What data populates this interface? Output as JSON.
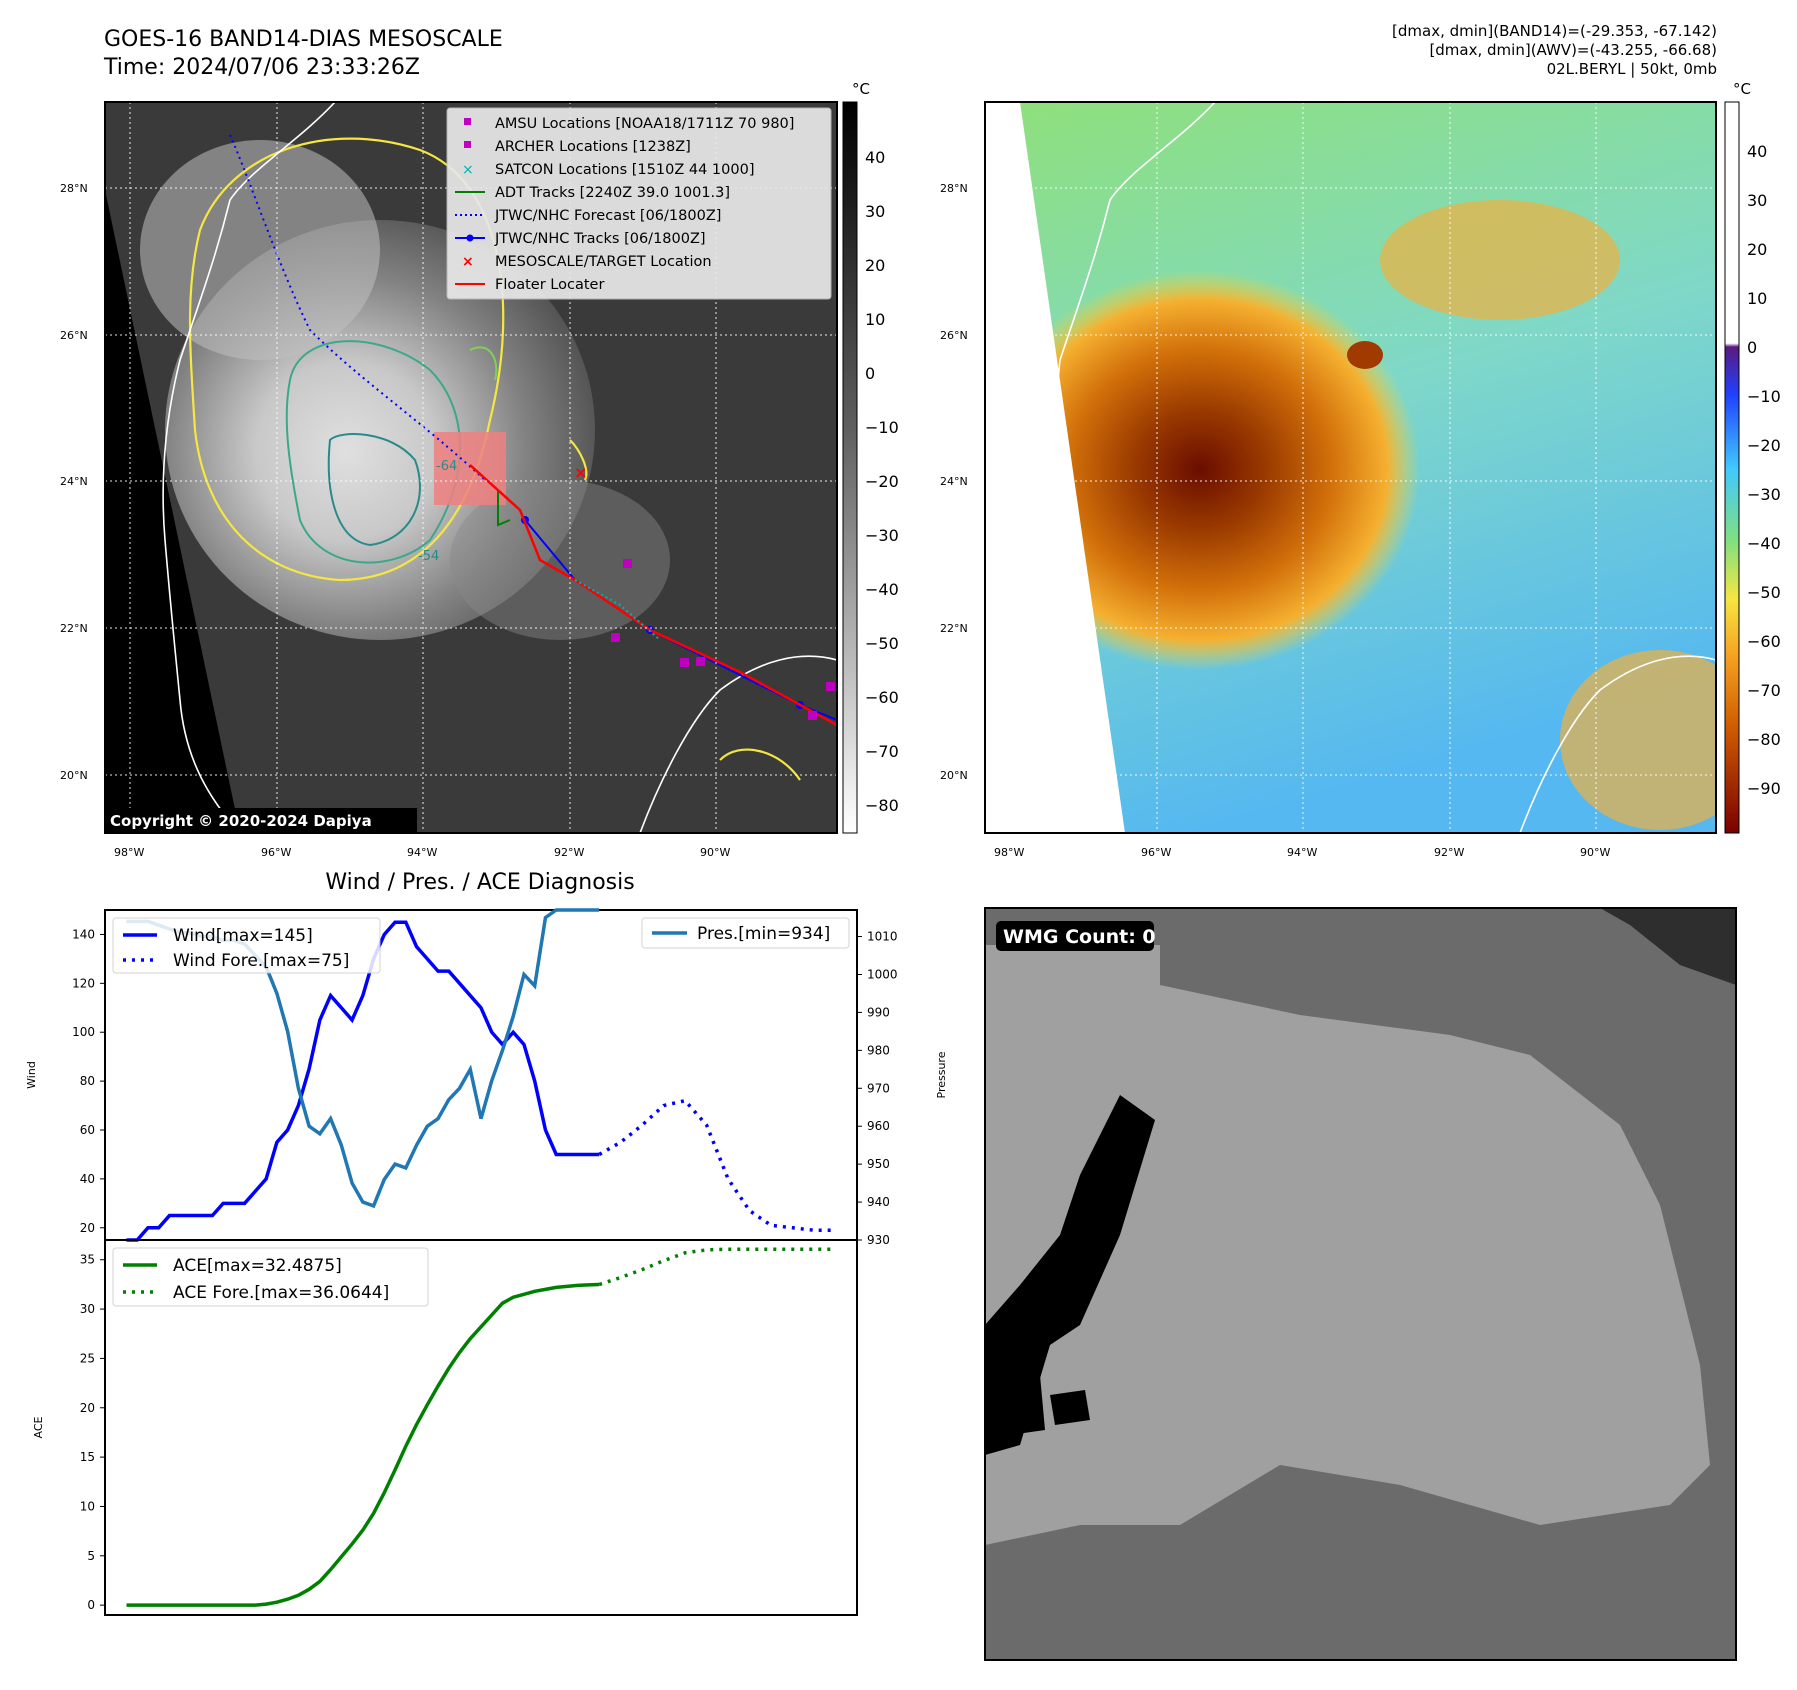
{
  "header": {
    "title_line1": "GOES-16 BAND14-DIAS MESOSCALE",
    "title_line2": "Time: 2024/07/06 23:33:26Z",
    "info_line1": "[dmax, dmin](BAND14)=(-29.353, -67.142)",
    "info_line2": "[dmax, dmin](AWV)=(-43.255, -66.68)",
    "info_line3": "02L.BERYL | 50kt, 0mb"
  },
  "ir_panel": {
    "unit": "°C",
    "copyright": "Copyright © 2020-2024 Dapiya",
    "lat_ticks": [
      "28°N",
      "26°N",
      "24°N",
      "22°N",
      "20°N"
    ],
    "lon_ticks": [
      "98°W",
      "96°W",
      "94°W",
      "92°W",
      "90°W"
    ],
    "colorbar_ticks": [
      "40",
      "30",
      "20",
      "10",
      "0",
      "−10",
      "−20",
      "−30",
      "−40",
      "−50",
      "−60",
      "−70",
      "−80"
    ],
    "contour_labels": [
      "-64",
      "-54"
    ],
    "legend": [
      {
        "label": "AMSU Locations [NOAA18/1711Z 70 980]",
        "symbol": "square",
        "color": "#c000c0"
      },
      {
        "label": "ARCHER Locations [1238Z]",
        "symbol": "square",
        "color": "#c000c0"
      },
      {
        "label": "SATCON Locations [1510Z 44 1000]",
        "symbol": "x",
        "color": "#00b0b0"
      },
      {
        "label": "ADT Tracks [2240Z 39.0 1001.3]",
        "symbol": "line",
        "color": "#008000"
      },
      {
        "label": "JTWC/NHC Forecast [06/1800Z]",
        "symbol": "dotted",
        "color": "#0000ff"
      },
      {
        "label": "JTWC/NHC Tracks [06/1800Z]",
        "symbol": "line-dot",
        "color": "#0000ff"
      },
      {
        "label": "MESOSCALE/TARGET Location",
        "symbol": "x",
        "color": "#ff0000"
      },
      {
        "label": "Floater Locater",
        "symbol": "line",
        "color": "#ff0000"
      }
    ]
  },
  "awv_panel": {
    "unit": "°C",
    "lat_ticks": [
      "28°N",
      "26°N",
      "24°N",
      "22°N",
      "20°N"
    ],
    "lon_ticks": [
      "98°W",
      "96°W",
      "94°W",
      "92°W",
      "90°W"
    ],
    "colorbar_ticks": [
      "40",
      "30",
      "20",
      "10",
      "0",
      "−10",
      "−20",
      "−30",
      "−40",
      "−50",
      "−60",
      "−70",
      "−80",
      "−90"
    ]
  },
  "wmg_panel": {
    "badge": "WMG Count: 0"
  },
  "chart_data": [
    {
      "type": "line",
      "title": "Wind / Pres. / ACE Diagnosis",
      "xlabel": "",
      "ylabel": "Wind",
      "y2label": "Pressure",
      "ylim": [
        15,
        150
      ],
      "y2lim": [
        930,
        1017
      ],
      "yticks": [
        "140",
        "120",
        "100",
        "80",
        "60",
        "40",
        "20"
      ],
      "y2ticks": [
        "1010",
        "1000",
        "990",
        "980",
        "970",
        "960",
        "950",
        "940",
        "930"
      ],
      "legend_left": "upper-left",
      "legend_right": "upper-right",
      "series": [
        {
          "name": "Wind[max=145]",
          "style": "solid",
          "color": "#0000ff",
          "axis": "left",
          "x": [
            0,
            1,
            2,
            3,
            4,
            5,
            6,
            7,
            8,
            9,
            10,
            11,
            12,
            13,
            14,
            15,
            16,
            17,
            18,
            19,
            20,
            21,
            22,
            23,
            24,
            25,
            26,
            27,
            28,
            29,
            30,
            31,
            32,
            33,
            34,
            35,
            36,
            37,
            38,
            39,
            40,
            41,
            42,
            43,
            44
          ],
          "values": [
            15,
            15,
            20,
            20,
            25,
            25,
            25,
            25,
            25,
            30,
            30,
            30,
            35,
            40,
            55,
            60,
            70,
            85,
            105,
            115,
            110,
            105,
            115,
            130,
            140,
            145,
            145,
            135,
            130,
            125,
            125,
            120,
            115,
            110,
            100,
            95,
            100,
            95,
            80,
            60,
            50,
            50,
            50,
            50,
            50
          ]
        },
        {
          "name": "Wind Fore.[max=75]",
          "style": "dotted",
          "color": "#0000ff",
          "axis": "left",
          "x": [
            44,
            46,
            48,
            50,
            52,
            54,
            56,
            58,
            60,
            62,
            64,
            66
          ],
          "values": [
            50,
            55,
            62,
            70,
            72,
            62,
            40,
            27,
            21,
            20,
            19,
            19
          ]
        },
        {
          "name": "Pres.[min=934]",
          "style": "solid",
          "color": "#1f77b4",
          "axis": "right",
          "x": [
            0,
            1,
            2,
            3,
            4,
            5,
            6,
            7,
            8,
            9,
            10,
            11,
            12,
            13,
            14,
            15,
            16,
            17,
            18,
            19,
            20,
            21,
            22,
            23,
            24,
            25,
            26,
            27,
            28,
            29,
            30,
            31,
            32,
            33,
            34,
            35,
            36,
            37,
            38,
            39,
            40,
            41,
            42,
            43,
            44
          ],
          "values": [
            1014,
            1014,
            1014,
            1013,
            1012,
            1011,
            1011,
            1010,
            1010,
            1009,
            1009,
            1008,
            1005,
            1002,
            995,
            985,
            970,
            960,
            958,
            962,
            955,
            945,
            940,
            939,
            946,
            950,
            949,
            955,
            960,
            962,
            967,
            970,
            975,
            962,
            972,
            980,
            989,
            1000,
            997,
            1015,
            1017,
            1017,
            1017,
            1017,
            1017
          ]
        }
      ]
    },
    {
      "type": "line",
      "xlabel": "",
      "ylabel": "ACE",
      "ylim": [
        -1,
        37
      ],
      "yticks": [
        "35",
        "30",
        "25",
        "20",
        "15",
        "10",
        "5",
        "0"
      ],
      "legend": "upper-left",
      "series": [
        {
          "name": "ACE[max=32.4875]",
          "style": "solid",
          "color": "#008000",
          "x": [
            0,
            2,
            4,
            6,
            8,
            10,
            12,
            13,
            14,
            15,
            16,
            17,
            18,
            19,
            20,
            21,
            22,
            23,
            24,
            25,
            26,
            27,
            28,
            29,
            30,
            31,
            32,
            33,
            34,
            35,
            36,
            37,
            38,
            39,
            40,
            41,
            42,
            43,
            44
          ],
          "values": [
            0,
            0,
            0,
            0,
            0,
            0,
            0,
            0.1,
            0.3,
            0.6,
            1.0,
            1.6,
            2.4,
            3.6,
            4.9,
            6.2,
            7.6,
            9.3,
            11.4,
            13.7,
            16.1,
            18.3,
            20.3,
            22.2,
            24.0,
            25.6,
            27.0,
            28.2,
            29.4,
            30.6,
            31.2,
            31.5,
            31.8,
            32.0,
            32.2,
            32.3,
            32.4,
            32.45,
            32.49
          ]
        },
        {
          "name": "ACE Fore.[max=36.0644]",
          "style": "dotted",
          "color": "#008000",
          "x": [
            44,
            46,
            48,
            50,
            52,
            54,
            56,
            58,
            60,
            62,
            64,
            66
          ],
          "values": [
            32.49,
            33.2,
            34.0,
            34.9,
            35.7,
            36.0,
            36.06,
            36.06,
            36.06,
            36.06,
            36.06,
            36.06
          ]
        }
      ]
    }
  ]
}
